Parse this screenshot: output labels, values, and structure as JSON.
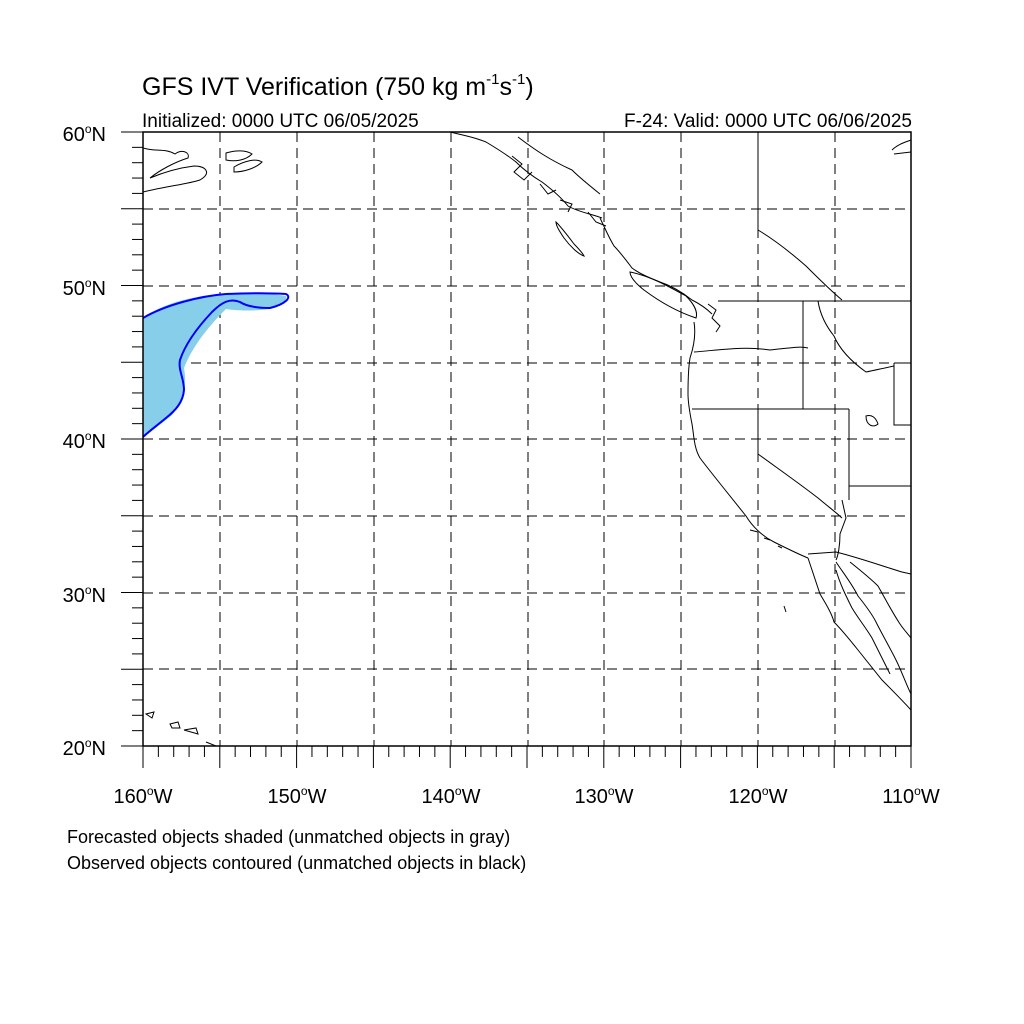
{
  "title": {
    "main": "GFS IVT Verification (750 kg m",
    "sup1": "-1",
    "mid": "s",
    "sup2": "-1",
    "end": ")"
  },
  "subtitle_left": "Initialized: 0000 UTC 06/05/2025",
  "subtitle_right": "F-24: Valid: 0000 UTC 06/06/2025",
  "lat_labels": [
    {
      "value": "60",
      "unit": "N"
    },
    {
      "value": "50",
      "unit": "N"
    },
    {
      "value": "40",
      "unit": "N"
    },
    {
      "value": "30",
      "unit": "N"
    },
    {
      "value": "20",
      "unit": "N"
    }
  ],
  "lon_labels": [
    {
      "value": "160",
      "unit": "W"
    },
    {
      "value": "150",
      "unit": "W"
    },
    {
      "value": "140",
      "unit": "W"
    },
    {
      "value": "130",
      "unit": "W"
    },
    {
      "value": "120",
      "unit": "W"
    },
    {
      "value": "110",
      "unit": "W"
    }
  ],
  "footnotes": [
    "Forecasted objects shaded (unmatched objects in gray)",
    "Observed objects contoured (unmatched objects in black)"
  ],
  "colors": {
    "forecast_fill": "#87CEEB",
    "observed_contour": "#0000FF",
    "coastline": "#000000",
    "grid": "#000000"
  }
}
